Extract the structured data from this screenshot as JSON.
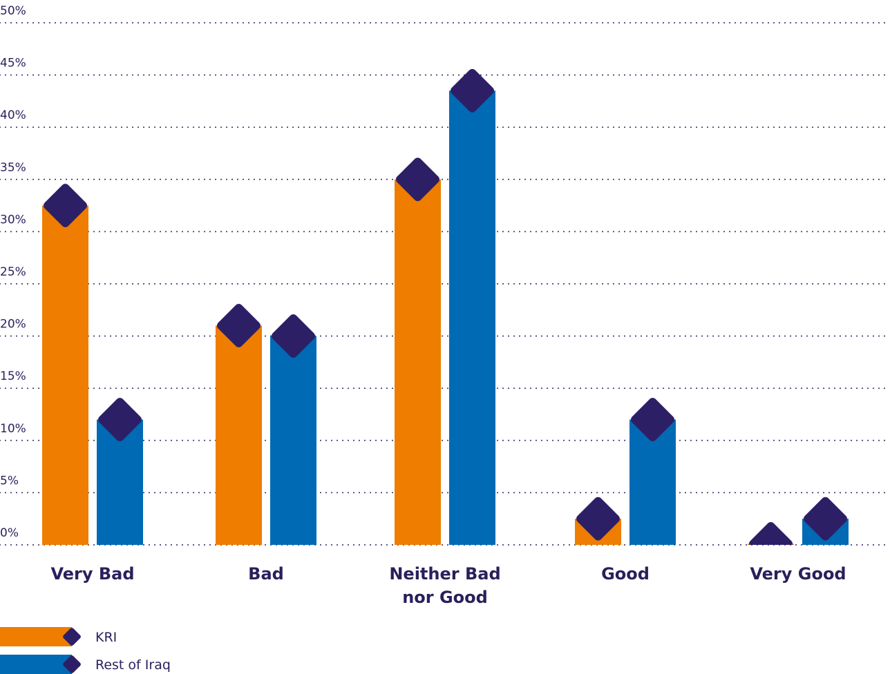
{
  "chart_data": {
    "type": "bar",
    "categories": [
      [
        "Very Bad"
      ],
      [
        "Bad"
      ],
      [
        "Neither Bad",
        "nor Good"
      ],
      [
        "Good"
      ],
      [
        "Very Good"
      ]
    ],
    "series": [
      {
        "name": "KRI",
        "values": [
          32.5,
          21.0,
          35.0,
          2.5,
          0.1
        ]
      },
      {
        "name": "Rest of Iraq",
        "values": [
          12.0,
          20.0,
          43.5,
          12.0,
          2.5
        ]
      }
    ],
    "ylim": [
      0,
      50
    ],
    "yticks": [
      0,
      5,
      10,
      15,
      20,
      25,
      30,
      35,
      40,
      45,
      50
    ],
    "ytick_labels": [
      "0%",
      "5%",
      "10%",
      "15%",
      "20%",
      "25%",
      "30%",
      "35%",
      "40%",
      "45%",
      "50%"
    ],
    "grid": "dotted horizontal",
    "legend_position": "bottom-left",
    "colors": {
      "KRI": "#ee7d00",
      "Rest of Iraq": "#006ab4",
      "marker": "#2d1f66",
      "grid": "#2a1f5c",
      "text": "#2a1f5c"
    }
  }
}
